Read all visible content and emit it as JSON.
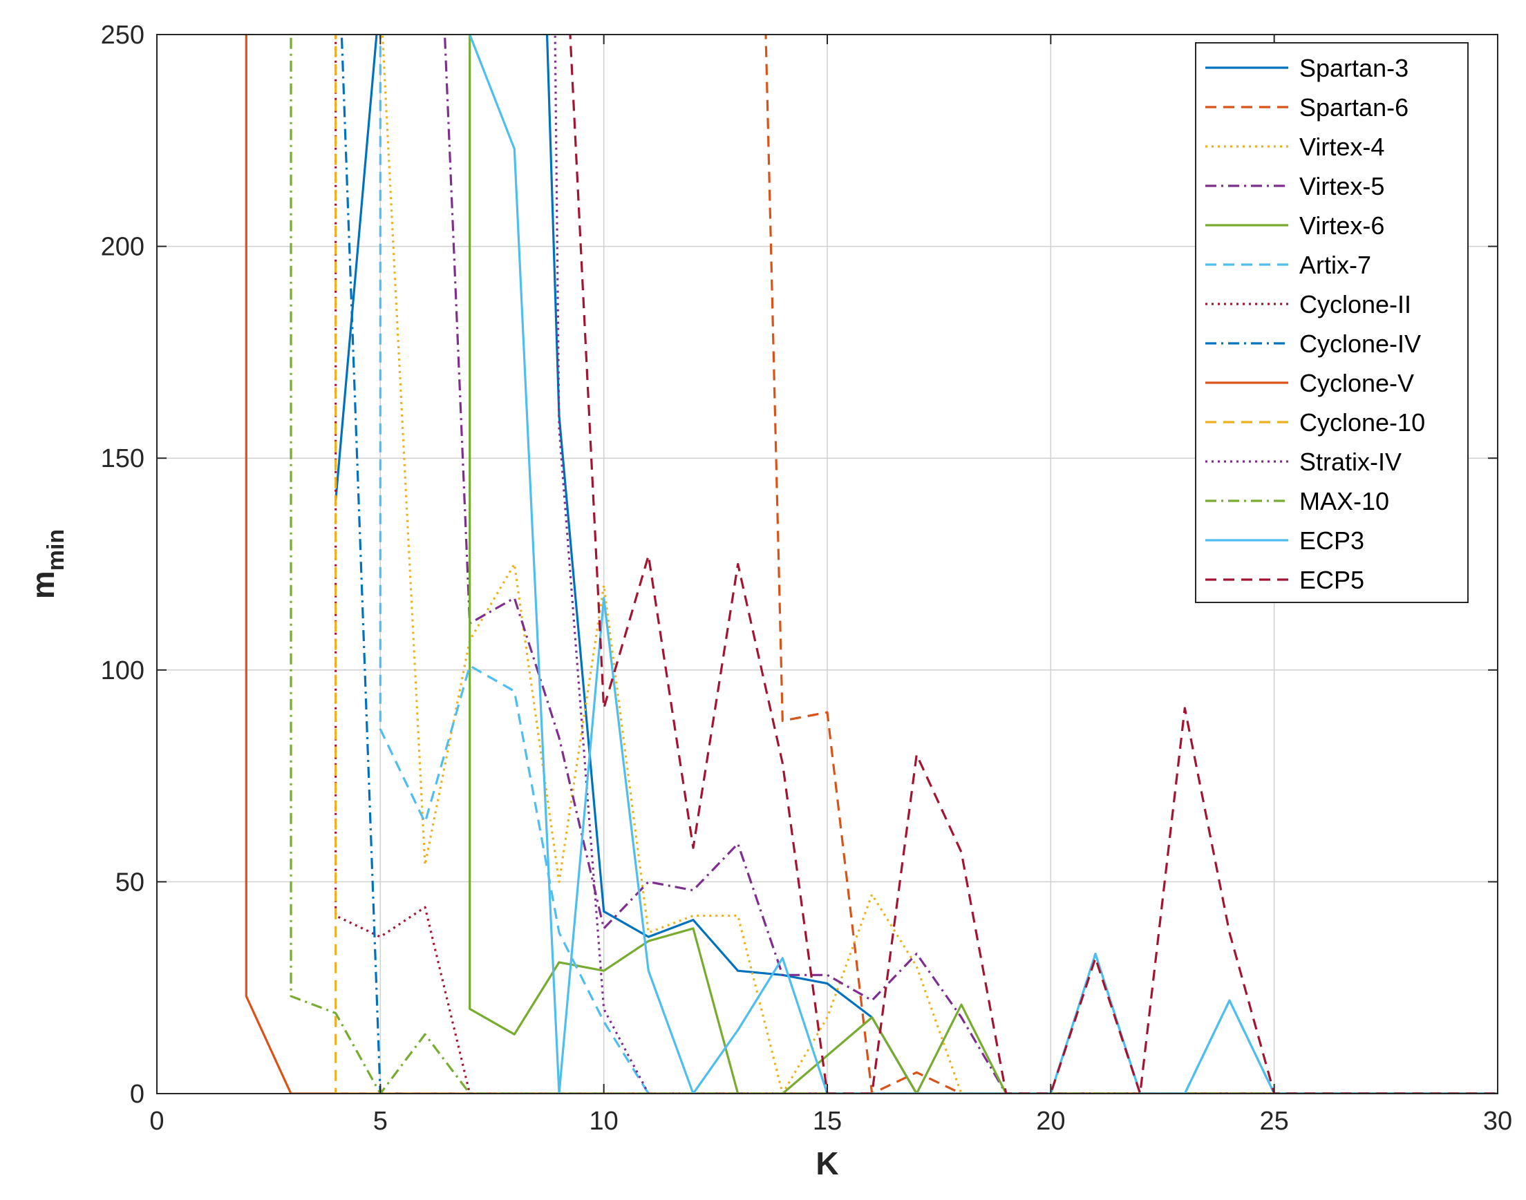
{
  "chart_data": {
    "type": "line",
    "xlabel": "K",
    "ylabel": "m",
    "ylabel_sub": "min",
    "xlim": [
      0,
      30
    ],
    "ylim": [
      0,
      250
    ],
    "xticks": [
      "0",
      "5",
      "10",
      "15",
      "20",
      "25",
      "30"
    ],
    "yticks": [
      "0",
      "50",
      "100",
      "150",
      "200",
      "250"
    ],
    "grid": true,
    "legend_position": "top-right",
    "series": [
      {
        "name": "Spartan-3",
        "color": "#0072BD",
        "dash": "solid",
        "x": [
          4,
          5,
          8.7,
          9,
          10,
          11,
          12,
          13,
          14,
          15,
          16,
          17,
          18,
          19,
          20,
          21,
          22,
          23,
          24,
          25,
          26,
          27,
          28,
          29,
          30
        ],
        "y": [
          140,
          260,
          260,
          160,
          43,
          37,
          41,
          29,
          28,
          26,
          18,
          0,
          0,
          0,
          0,
          0,
          0,
          0,
          0,
          0,
          0,
          0,
          0,
          0,
          0
        ]
      },
      {
        "name": "Spartan-6",
        "color": "#D95319",
        "dash": "dashed",
        "x": [
          13.6,
          14,
          15,
          16,
          17,
          18,
          19,
          20,
          21,
          22,
          23,
          24,
          25,
          26,
          27,
          28,
          29,
          30
        ],
        "y": [
          260,
          88,
          90,
          0,
          5,
          0,
          0,
          0,
          0,
          0,
          0,
          0,
          0,
          0,
          0,
          0,
          0,
          0
        ]
      },
      {
        "name": "Virtex-4",
        "color": "#EDB120",
        "dash": "dotted",
        "x": [
          5,
          6,
          7,
          8,
          9,
          10,
          11,
          12,
          13,
          14,
          15,
          16,
          17,
          18,
          19,
          20,
          21,
          22,
          23,
          24,
          25,
          26,
          27,
          28,
          29,
          30
        ],
        "y": [
          260,
          54,
          107,
          125,
          50,
          120,
          38,
          42,
          42,
          0,
          18,
          47,
          30,
          0,
          0,
          0,
          0,
          0,
          0,
          0,
          0,
          0,
          0,
          0,
          0,
          0
        ]
      },
      {
        "name": "Virtex-5",
        "color": "#7E2F8E",
        "dash": "dashdot",
        "x": [
          6.4,
          7,
          8,
          9,
          10,
          11,
          12,
          13,
          14,
          15,
          16,
          17,
          18,
          19,
          20,
          21,
          22,
          23,
          24,
          25,
          26,
          27,
          28,
          29,
          30
        ],
        "y": [
          260,
          111,
          117,
          84,
          39,
          50,
          48,
          59,
          28,
          28,
          22,
          33,
          18,
          0,
          0,
          0,
          0,
          0,
          0,
          0,
          0,
          0,
          0,
          0,
          0
        ]
      },
      {
        "name": "Virtex-6",
        "color": "#77AC30",
        "dash": "solid",
        "x": [
          7,
          7,
          8,
          9,
          10,
          11,
          12,
          13,
          14,
          15,
          16,
          17,
          18,
          19,
          20,
          21,
          22,
          23,
          24,
          25,
          26,
          27,
          28,
          29,
          30
        ],
        "y": [
          260,
          20,
          14,
          31,
          29,
          36,
          39,
          0,
          0,
          9,
          18,
          0,
          21,
          0,
          0,
          0,
          0,
          0,
          0,
          0,
          0,
          0,
          0,
          0,
          0
        ]
      },
      {
        "name": "Artix-7",
        "color": "#4DBEEE",
        "dash": "dashed",
        "x": [
          5,
          5,
          6,
          7,
          8,
          9,
          10,
          11,
          12,
          13,
          14,
          15,
          16,
          17,
          18,
          19,
          20,
          21,
          22,
          23,
          24,
          25,
          26,
          27,
          28,
          29,
          30
        ],
        "y": [
          260,
          86,
          64,
          101,
          95,
          38,
          17,
          0,
          0,
          0,
          0,
          0,
          0,
          0,
          0,
          0,
          0,
          33,
          0,
          0,
          22,
          0,
          0,
          0,
          0,
          0,
          0
        ]
      },
      {
        "name": "Cyclone-II",
        "color": "#A2142F",
        "dash": "dotted",
        "x": [
          4,
          4,
          5,
          6,
          7,
          8,
          9,
          10,
          11,
          12,
          13,
          14,
          15,
          16,
          17,
          18,
          19,
          20,
          21,
          22,
          23,
          24,
          25,
          26,
          27,
          28,
          29,
          30
        ],
        "y": [
          260,
          42,
          37,
          44,
          0,
          0,
          0,
          0,
          0,
          0,
          0,
          0,
          0,
          0,
          0,
          0,
          0,
          0,
          0,
          0,
          0,
          0,
          0,
          0,
          0,
          0,
          0,
          0
        ]
      },
      {
        "name": "Cyclone-IV",
        "color": "#0072BD",
        "dash": "dashdot",
        "x": [
          4.1,
          5,
          6,
          7,
          8,
          9,
          10,
          11,
          12,
          13,
          14,
          15,
          16,
          17,
          18,
          19,
          20,
          21,
          22,
          23,
          24,
          25,
          26,
          27,
          28,
          29,
          30
        ],
        "y": [
          260,
          0,
          0,
          0,
          0,
          0,
          0,
          0,
          0,
          0,
          0,
          0,
          0,
          0,
          0,
          0,
          0,
          0,
          0,
          0,
          0,
          0,
          0,
          0,
          0,
          0,
          0
        ]
      },
      {
        "name": "Cyclone-V",
        "color": "#D95319",
        "dash": "solid",
        "x": [
          2,
          2,
          3,
          4,
          5,
          6,
          7,
          8,
          9,
          10,
          11,
          12,
          13,
          14,
          15,
          16,
          17,
          18,
          19,
          20,
          21,
          22,
          23,
          24,
          25,
          26,
          27,
          28,
          29,
          30
        ],
        "y": [
          260,
          23,
          0,
          0,
          0,
          0,
          0,
          0,
          0,
          0,
          0,
          0,
          0,
          0,
          0,
          0,
          0,
          0,
          0,
          0,
          0,
          0,
          0,
          0,
          0,
          0,
          0,
          0,
          0,
          0
        ]
      },
      {
        "name": "Cyclone-10",
        "color": "#EDB120",
        "dash": "dashed",
        "x": [
          4,
          4,
          5,
          6,
          7,
          8,
          9,
          10,
          11,
          12,
          13,
          14,
          15,
          16,
          17,
          18,
          19,
          20,
          21,
          22,
          23,
          24,
          25,
          26,
          27,
          28,
          29,
          30
        ],
        "y": [
          260,
          0,
          0,
          0,
          0,
          0,
          0,
          0,
          0,
          0,
          0,
          0,
          0,
          0,
          0,
          0,
          0,
          0,
          0,
          0,
          0,
          0,
          0,
          0,
          0,
          0,
          0,
          0
        ]
      },
      {
        "name": "Stratix-IV",
        "color": "#7E2F8E",
        "dash": "dotted",
        "x": [
          8.9,
          9,
          10,
          11,
          12,
          13,
          14,
          15,
          16,
          17,
          18,
          19,
          20,
          21,
          22,
          23,
          24,
          25,
          26,
          27,
          28,
          29,
          30
        ],
        "y": [
          260,
          157,
          20,
          0,
          0,
          0,
          0,
          0,
          0,
          0,
          0,
          0,
          0,
          0,
          0,
          0,
          0,
          0,
          0,
          0,
          0,
          0,
          0
        ]
      },
      {
        "name": "MAX-10",
        "color": "#77AC30",
        "dash": "dashdot",
        "x": [
          3,
          3,
          4,
          5,
          6,
          7,
          8,
          9,
          10,
          11,
          12,
          13,
          14,
          15,
          16,
          17,
          18,
          19,
          20,
          21,
          22,
          23,
          24,
          25,
          26,
          27,
          28,
          29,
          30
        ],
        "y": [
          260,
          23,
          19,
          0,
          14,
          0,
          0,
          0,
          0,
          0,
          0,
          0,
          0,
          0,
          0,
          0,
          0,
          0,
          0,
          0,
          0,
          0,
          0,
          0,
          0,
          0,
          0,
          0,
          0
        ]
      },
      {
        "name": "ECP3",
        "color": "#4DBEEE",
        "dash": "solid",
        "x": [
          7,
          8,
          9,
          10,
          11,
          12,
          13,
          14,
          15,
          16,
          17,
          18,
          19,
          20,
          21,
          22,
          23,
          24,
          25,
          26,
          27,
          28,
          29,
          30
        ],
        "y": [
          250,
          223,
          0,
          117,
          29,
          0,
          15,
          32,
          0,
          0,
          0,
          0,
          0,
          0,
          33,
          0,
          0,
          22,
          0,
          0,
          0,
          0,
          0,
          0
        ]
      },
      {
        "name": "ECP5",
        "color": "#A2142F",
        "dash": "dashed",
        "x": [
          9.2,
          10,
          11,
          12,
          13,
          14,
          15,
          16,
          17,
          18,
          19,
          20,
          21,
          22,
          23,
          24,
          25,
          26,
          27,
          28,
          29,
          30
        ],
        "y": [
          260,
          91,
          127,
          58,
          125,
          78,
          0,
          0,
          80,
          57,
          0,
          0,
          32,
          0,
          91,
          38,
          0,
          0,
          0,
          0,
          0,
          0
        ]
      }
    ]
  }
}
